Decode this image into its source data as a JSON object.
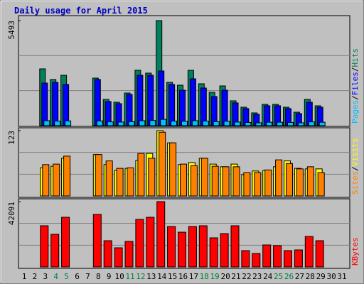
{
  "chart_data": {
    "type": "bar",
    "title": "Daily usage for April 2015",
    "categories": [
      "1",
      "2",
      "3",
      "4",
      "5",
      "6",
      "7",
      "8",
      "9",
      "10",
      "11",
      "12",
      "13",
      "14",
      "15",
      "16",
      "17",
      "18",
      "19",
      "20",
      "21",
      "22",
      "23",
      "24",
      "25",
      "26",
      "27",
      "28",
      "29",
      "30",
      "31"
    ],
    "category_color": "#000000",
    "highlight_categories": [
      3,
      4,
      10,
      11,
      17,
      18,
      24,
      25
    ],
    "highlight_color": "#008040",
    "legend_separator": "/",
    "grid": true,
    "panels": [
      {
        "ylim": [
          0,
          5493
        ],
        "yticks": [
          5493
        ],
        "series": [
          {
            "name": "Hits",
            "color": "#00805c",
            "values": [
              null,
              null,
              2969,
              2412,
              2635,
              null,
              null,
              2487,
              1373,
              1225,
              1707,
              2895,
              2747,
              5493,
              2264,
              2116,
              2895,
              2190,
              1744,
              2078,
              1299,
              965,
              668,
              1113,
              1113,
              965,
              705,
              1373,
              1039,
              null,
              null
            ]
          },
          {
            "name": "Files",
            "color": "#0000ff",
            "values": [
              null,
              null,
              2227,
              2264,
              2153,
              null,
              null,
              2412,
              1262,
              1151,
              1633,
              2635,
              2635,
              2858,
              2153,
              1856,
              2449,
              1967,
              1522,
              1856,
              1188,
              891,
              594,
              1039,
              1039,
              891,
              631,
              1225,
              965,
              null,
              null
            ]
          },
          {
            "name": "Pages",
            "color": "#00c0ff",
            "values": [
              null,
              null,
              260,
              240,
              250,
              null,
              null,
              250,
              200,
              190,
              210,
              260,
              270,
              330,
              240,
              230,
              260,
              240,
              210,
              230,
              190,
              170,
              150,
              180,
              180,
              170,
              150,
              200,
              180,
              null,
              null
            ]
          }
        ],
        "legend_order": [
          2,
          1,
          0
        ]
      },
      {
        "ylim": [
          0,
          123
        ],
        "yticks": [
          123
        ],
        "series": [
          {
            "name": "Visits",
            "color": "#ffff00",
            "values": [
              null,
              null,
              53,
              56,
              71,
              null,
              null,
              78,
              59,
              48,
              52,
              67,
              80,
              123,
              100,
              59,
              63,
              71,
              60,
              55,
              60,
              40,
              47,
              48,
              55,
              66,
              52,
              51,
              51,
              null,
              null
            ]
          },
          {
            "name": "Sites",
            "color": "#ff8000",
            "values": [
              null,
              null,
              59,
              60,
              75,
              null,
              null,
              78,
              66,
              52,
              53,
              80,
              71,
              120,
              100,
              60,
              57,
              71,
              56,
              55,
              55,
              44,
              44,
              49,
              68,
              61,
              51,
              55,
              44,
              null,
              null
            ]
          }
        ],
        "legend_order": [
          1,
          0
        ]
      },
      {
        "ylim": [
          0,
          42091
        ],
        "yticks": [
          42091
        ],
        "series": [
          {
            "name": "KBytes",
            "color": "#ff0000",
            "values": [
              null,
              null,
              26536,
              21046,
              32025,
              null,
              null,
              33855,
              16928,
              12353,
              16470,
              30653,
              32025,
              42091,
              26078,
              22418,
              26078,
              26536,
              18758,
              21503,
              26536,
              10523,
              8693,
              14183,
              13725,
              10523,
              10980,
              19673,
              16928,
              null,
              null
            ]
          }
        ],
        "legend_order": [
          0
        ]
      }
    ]
  }
}
